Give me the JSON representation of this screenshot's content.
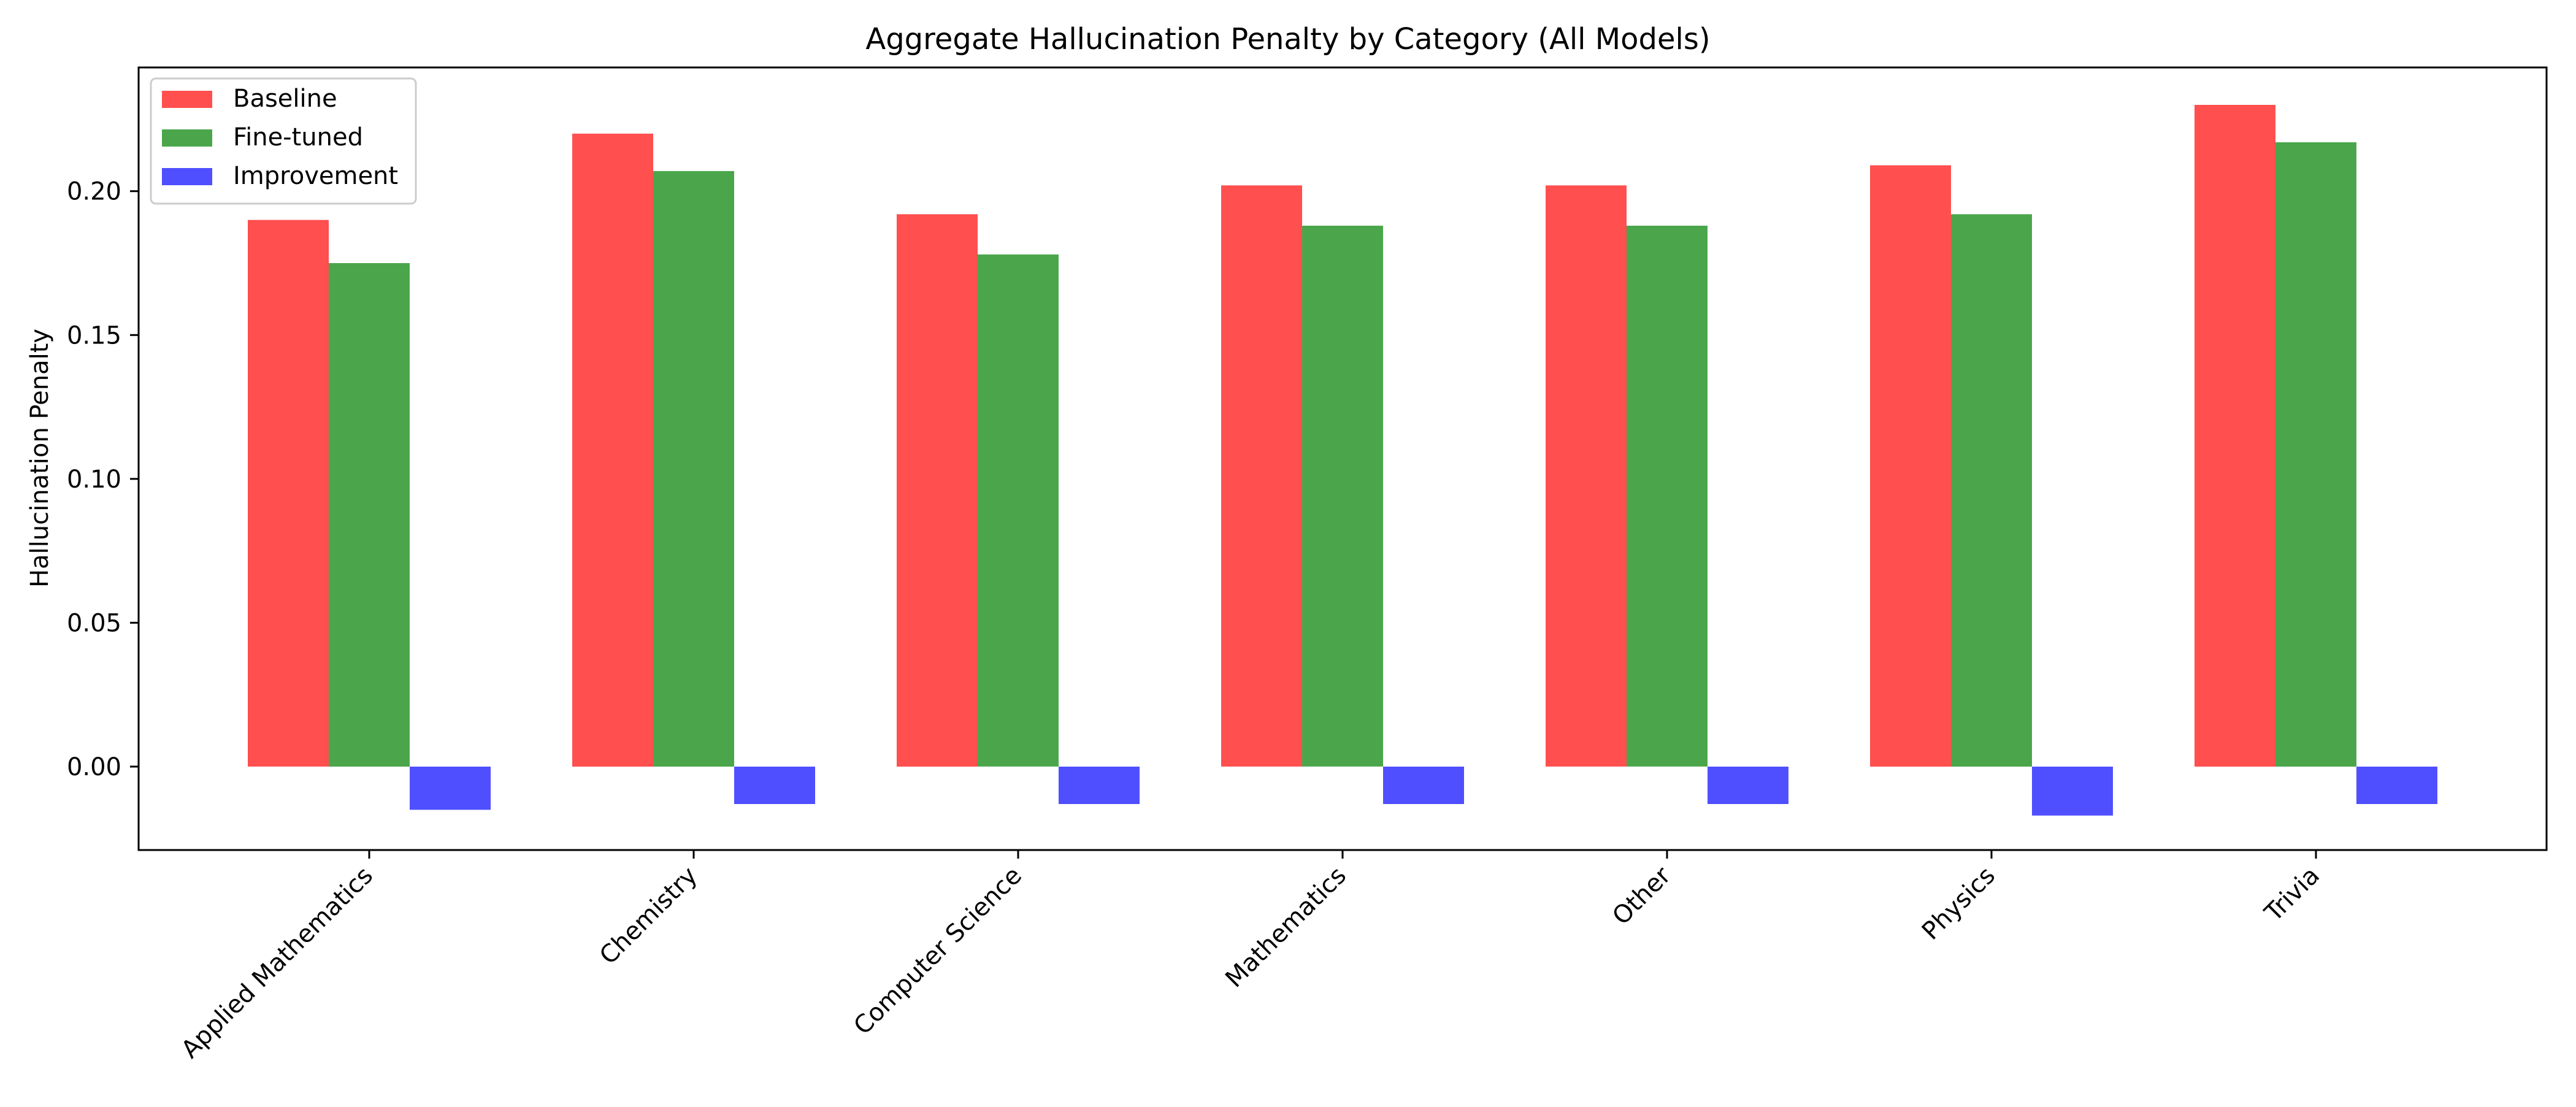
{
  "chart_data": {
    "type": "bar",
    "title": "Aggregate Hallucination Penalty by Category (All Models)",
    "xlabel": "",
    "ylabel": "Hallucination Penalty",
    "ylim": [
      -0.029,
      0.243
    ],
    "yticks": [
      "0.00",
      "0.05",
      "0.10",
      "0.15",
      "0.20"
    ],
    "grid": false,
    "legend_position": "upper-left",
    "categories": [
      "Applied Mathematics",
      "Chemistry",
      "Computer Science",
      "Mathematics",
      "Other",
      "Physics",
      "Trivia"
    ],
    "series": [
      {
        "name": "Baseline",
        "color": "#ff4f4f",
        "values": [
          0.19,
          0.22,
          0.192,
          0.202,
          0.202,
          0.209,
          0.23
        ]
      },
      {
        "name": "Fine-tuned",
        "color": "#4ba64b",
        "values": [
          0.175,
          0.207,
          0.178,
          0.188,
          0.188,
          0.192,
          0.217
        ]
      },
      {
        "name": "Improvement",
        "color": "#4f4fff",
        "values": [
          -0.015,
          -0.013,
          -0.013,
          -0.013,
          -0.013,
          -0.017,
          -0.013
        ]
      }
    ]
  }
}
